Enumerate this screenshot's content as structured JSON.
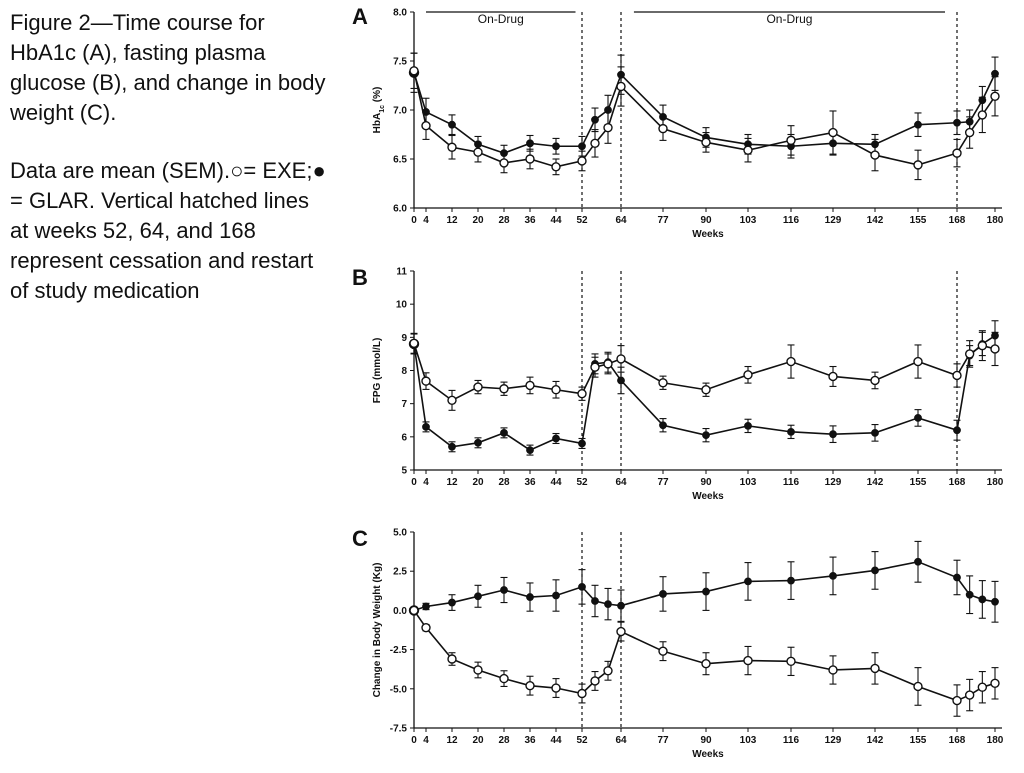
{
  "caption": {
    "title": "Figure 2—Time course for HbA1c (A), fasting plasma glucose (B), and change in body weight (C).",
    "legend_prefix": "Data are mean (SEM).",
    "open_marker": "○",
    "open_label": "= EXE;",
    "filled_marker": "●",
    "filled_label": "= GLAR.",
    "note": "Vertical hatched lines at weeks 52, 64, and 168 represent cessation and restart of study medication"
  },
  "chart_data": [
    {
      "type": "line",
      "panel": "A",
      "title": "",
      "xlabel": "Weeks",
      "ylabel_main": "HbA",
      "ylabel_sub": "1c",
      "ylabel_unit": " (%)",
      "ylim": [
        6.0,
        8.0
      ],
      "yticks": [
        "6.0",
        "6.5",
        "7.0",
        "7.5",
        "8.0"
      ],
      "xticks": [
        0,
        4,
        12,
        20,
        28,
        36,
        44,
        52,
        64,
        77,
        90,
        103,
        116,
        129,
        142,
        155,
        168,
        180
      ],
      "vlines": [
        52,
        64,
        168
      ],
      "annotations": [
        {
          "text": "On-Drug",
          "x_start": 4,
          "x_end": 50
        },
        {
          "text": "On-Drug",
          "x_start": 68,
          "x_end": 164
        }
      ],
      "series": [
        {
          "marker": "filled",
          "x": [
            0,
            4,
            12,
            20,
            28,
            36,
            44,
            52,
            56,
            60,
            64,
            77,
            90,
            103,
            116,
            129,
            142,
            155,
            168,
            172,
            176,
            180
          ],
          "y": [
            7.38,
            6.98,
            6.85,
            6.65,
            6.56,
            6.66,
            6.63,
            6.63,
            6.9,
            7.0,
            7.36,
            6.93,
            6.72,
            6.65,
            6.63,
            6.66,
            6.65,
            6.85,
            6.87,
            6.88,
            7.1,
            7.37
          ],
          "err": [
            0.2,
            0.14,
            0.1,
            0.08,
            0.08,
            0.08,
            0.08,
            0.1,
            0.12,
            0.15,
            0.2,
            0.12,
            0.1,
            0.1,
            0.12,
            0.12,
            0.1,
            0.12,
            0.12,
            0.12,
            0.14,
            0.17
          ]
        },
        {
          "marker": "open",
          "x": [
            0,
            4,
            12,
            20,
            28,
            36,
            44,
            52,
            56,
            60,
            64,
            77,
            90,
            103,
            116,
            129,
            142,
            155,
            168,
            172,
            176,
            180
          ],
          "y": [
            7.4,
            6.84,
            6.62,
            6.57,
            6.46,
            6.5,
            6.42,
            6.48,
            6.66,
            6.82,
            7.24,
            6.81,
            6.67,
            6.59,
            6.69,
            6.77,
            6.54,
            6.44,
            6.56,
            6.77,
            6.95,
            7.14
          ],
          "err": [
            0.18,
            0.14,
            0.12,
            0.1,
            0.1,
            0.1,
            0.08,
            0.1,
            0.14,
            0.16,
            0.2,
            0.12,
            0.1,
            0.12,
            0.15,
            0.22,
            0.16,
            0.15,
            0.14,
            0.16,
            0.18,
            0.2
          ]
        }
      ]
    },
    {
      "type": "line",
      "panel": "B",
      "title": "",
      "xlabel": "Weeks",
      "ylabel_main": "FPG (mmol/L)",
      "ylim": [
        5,
        11
      ],
      "yticks": [
        "5",
        "6",
        "7",
        "8",
        "9",
        "10",
        "11"
      ],
      "xticks": [
        0,
        4,
        12,
        20,
        28,
        36,
        44,
        52,
        64,
        77,
        90,
        103,
        116,
        129,
        142,
        155,
        168,
        180
      ],
      "vlines": [
        52,
        64,
        168
      ],
      "series": [
        {
          "marker": "filled",
          "x": [
            0,
            4,
            12,
            20,
            28,
            36,
            44,
            52,
            56,
            60,
            64,
            77,
            90,
            103,
            116,
            129,
            142,
            155,
            168,
            172,
            176,
            180
          ],
          "y": [
            8.8,
            6.3,
            5.7,
            5.82,
            6.12,
            5.6,
            5.95,
            5.8,
            8.2,
            8.25,
            7.7,
            6.35,
            6.05,
            6.33,
            6.15,
            6.08,
            6.12,
            6.57,
            6.2,
            8.45,
            8.8,
            9.05
          ],
          "err": [
            0.3,
            0.15,
            0.15,
            0.15,
            0.15,
            0.15,
            0.15,
            0.15,
            0.3,
            0.3,
            0.4,
            0.2,
            0.2,
            0.2,
            0.2,
            0.25,
            0.25,
            0.25,
            0.3,
            0.3,
            0.35,
            0.45
          ]
        },
        {
          "marker": "open",
          "x": [
            0,
            4,
            12,
            20,
            28,
            36,
            44,
            52,
            56,
            60,
            64,
            77,
            90,
            103,
            116,
            129,
            142,
            155,
            168,
            172,
            176,
            180
          ],
          "y": [
            8.82,
            7.68,
            7.1,
            7.5,
            7.45,
            7.55,
            7.42,
            7.3,
            8.1,
            8.2,
            8.35,
            7.63,
            7.42,
            7.87,
            8.27,
            7.82,
            7.7,
            8.27,
            7.85,
            8.5,
            8.75,
            8.65
          ],
          "err": [
            0.3,
            0.25,
            0.3,
            0.2,
            0.2,
            0.25,
            0.25,
            0.2,
            0.3,
            0.3,
            0.4,
            0.2,
            0.2,
            0.25,
            0.5,
            0.3,
            0.25,
            0.5,
            0.35,
            0.4,
            0.45,
            0.5
          ]
        }
      ]
    },
    {
      "type": "line",
      "panel": "C",
      "title": "",
      "xlabel": "Weeks",
      "ylabel_main": "Change in Body Weight (Kg)",
      "ylim": [
        -7.5,
        5.0
      ],
      "yticks": [
        "-7.5",
        "-5.0",
        "-2.5",
        "0.0",
        "2.5",
        "5.0"
      ],
      "xticks": [
        0,
        4,
        12,
        20,
        28,
        36,
        44,
        52,
        64,
        77,
        90,
        103,
        116,
        129,
        142,
        155,
        168,
        180
      ],
      "vlines": [
        52,
        64
      ],
      "series": [
        {
          "marker": "filled",
          "x": [
            0,
            4,
            12,
            20,
            28,
            36,
            44,
            52,
            56,
            60,
            64,
            77,
            90,
            103,
            116,
            129,
            142,
            155,
            168,
            172,
            176,
            180
          ],
          "y": [
            0.0,
            0.25,
            0.5,
            0.9,
            1.3,
            0.85,
            0.95,
            1.5,
            0.6,
            0.4,
            0.3,
            1.05,
            1.2,
            1.85,
            1.9,
            2.2,
            2.55,
            3.1,
            2.1,
            1.0,
            0.7,
            0.55
          ],
          "err": [
            0.1,
            0.2,
            0.5,
            0.7,
            0.8,
            0.9,
            1.0,
            1.1,
            1.0,
            1.0,
            1.0,
            1.1,
            1.2,
            1.2,
            1.2,
            1.2,
            1.2,
            1.3,
            1.1,
            1.2,
            1.2,
            1.3
          ]
        },
        {
          "marker": "open",
          "x": [
            0,
            4,
            12,
            20,
            28,
            36,
            44,
            52,
            56,
            60,
            64,
            77,
            90,
            103,
            116,
            129,
            142,
            155,
            168,
            172,
            176,
            180
          ],
          "y": [
            0.0,
            -1.1,
            -3.1,
            -3.8,
            -4.35,
            -4.8,
            -4.95,
            -5.3,
            -4.5,
            -3.85,
            -1.35,
            -2.6,
            -3.4,
            -3.2,
            -3.25,
            -3.8,
            -3.7,
            -4.85,
            -5.75,
            -5.4,
            -4.9,
            -4.65
          ],
          "err": [
            0.1,
            0.2,
            0.4,
            0.5,
            0.5,
            0.6,
            0.6,
            0.6,
            0.6,
            0.6,
            0.6,
            0.6,
            0.7,
            0.9,
            0.9,
            0.9,
            1.0,
            1.2,
            1.0,
            1.0,
            1.0,
            1.0
          ]
        }
      ]
    }
  ]
}
